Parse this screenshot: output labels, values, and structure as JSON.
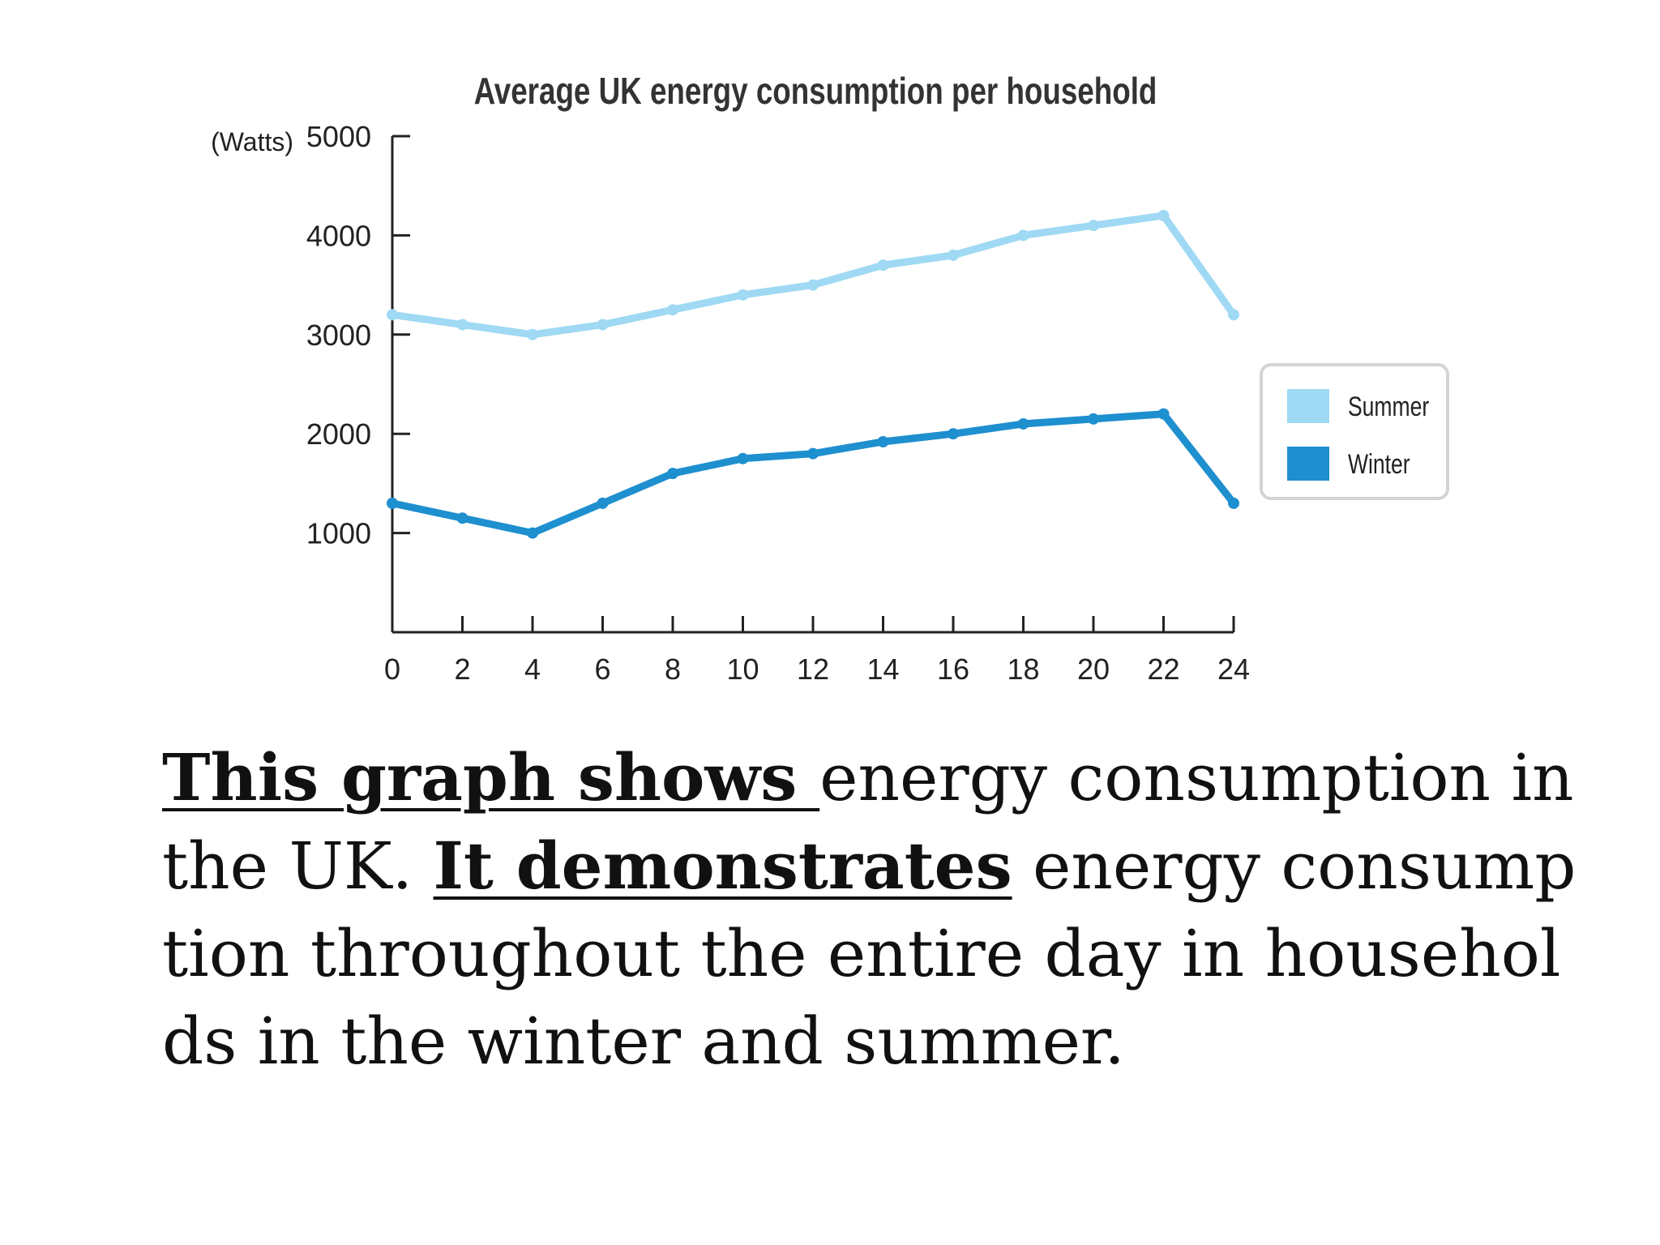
{
  "chart_data": {
    "type": "line",
    "title": "Average UK energy consumption per household",
    "ylabel": "(Watts)",
    "xlabel": "",
    "x": [
      0,
      2,
      4,
      6,
      8,
      10,
      12,
      14,
      16,
      18,
      20,
      22,
      24
    ],
    "xticks": [
      "0",
      "2",
      "4",
      "6",
      "8",
      "10",
      "12",
      "14",
      "16",
      "18",
      "20",
      "22",
      "24"
    ],
    "yticks": [
      "5000",
      "4000",
      "3000",
      "2000",
      "1000"
    ],
    "ylim": [
      0,
      5000
    ],
    "xlim": [
      0,
      24
    ],
    "legend_position": "right",
    "series": [
      {
        "name": "Summer",
        "color": "#9fd9f4",
        "values": [
          3200,
          3100,
          3000,
          3100,
          3250,
          3400,
          3500,
          3700,
          3800,
          4000,
          4100,
          4200,
          3200
        ]
      },
      {
        "name": "Winter",
        "color": "#1e8fcf",
        "values": [
          1300,
          1150,
          1000,
          1300,
          1600,
          1750,
          1800,
          1920,
          2000,
          2100,
          2150,
          2200,
          1300
        ]
      }
    ]
  },
  "caption": {
    "bold1": "This graph shows ",
    "text1": "energy consumption in the UK. ",
    "bold2": "It demonstrates",
    "text2": " energy consumption throughout the entire day in households in the winter and summer."
  }
}
